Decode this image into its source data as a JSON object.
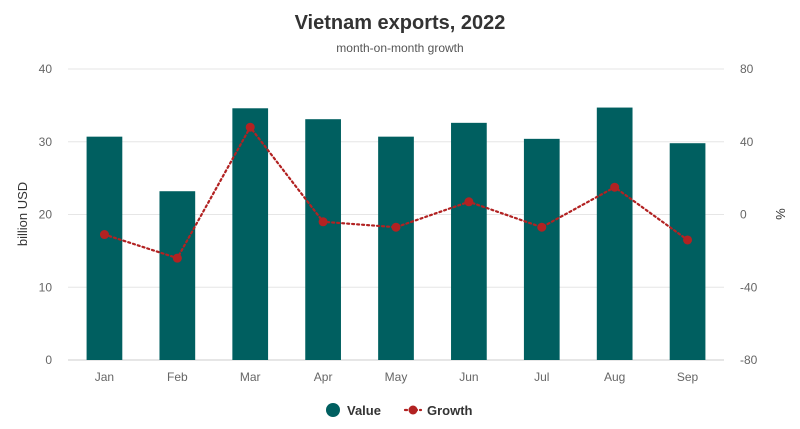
{
  "chart_data": {
    "type": "bar",
    "title": "Vietnam exports, 2022",
    "subtitle": "month-on-month growth",
    "categories": [
      "Jan",
      "Feb",
      "Mar",
      "Apr",
      "May",
      "Jun",
      "Jul",
      "Aug",
      "Sep"
    ],
    "series": [
      {
        "name": "Value",
        "type": "bar",
        "axis": "left",
        "color": "#005f60",
        "values": [
          30.7,
          23.2,
          34.6,
          33.1,
          30.7,
          32.6,
          30.4,
          34.7,
          29.8
        ]
      },
      {
        "name": "Growth",
        "type": "line",
        "axis": "right",
        "line_style": "dotted",
        "color": "#b22222",
        "values": [
          -11,
          -24,
          48,
          -4,
          -7,
          7,
          -7,
          15,
          -14
        ]
      }
    ],
    "ylabel_left": "billion USD",
    "ylabel_right": "%",
    "ylim_left": [
      0,
      40
    ],
    "ylim_right": [
      -80,
      80
    ],
    "yticks_left": [
      "0",
      "10",
      "20",
      "30",
      "40"
    ],
    "yticks_right": [
      "-80",
      "-40",
      "0",
      "40",
      "80"
    ],
    "grid": true,
    "legend": "bottom-center"
  }
}
